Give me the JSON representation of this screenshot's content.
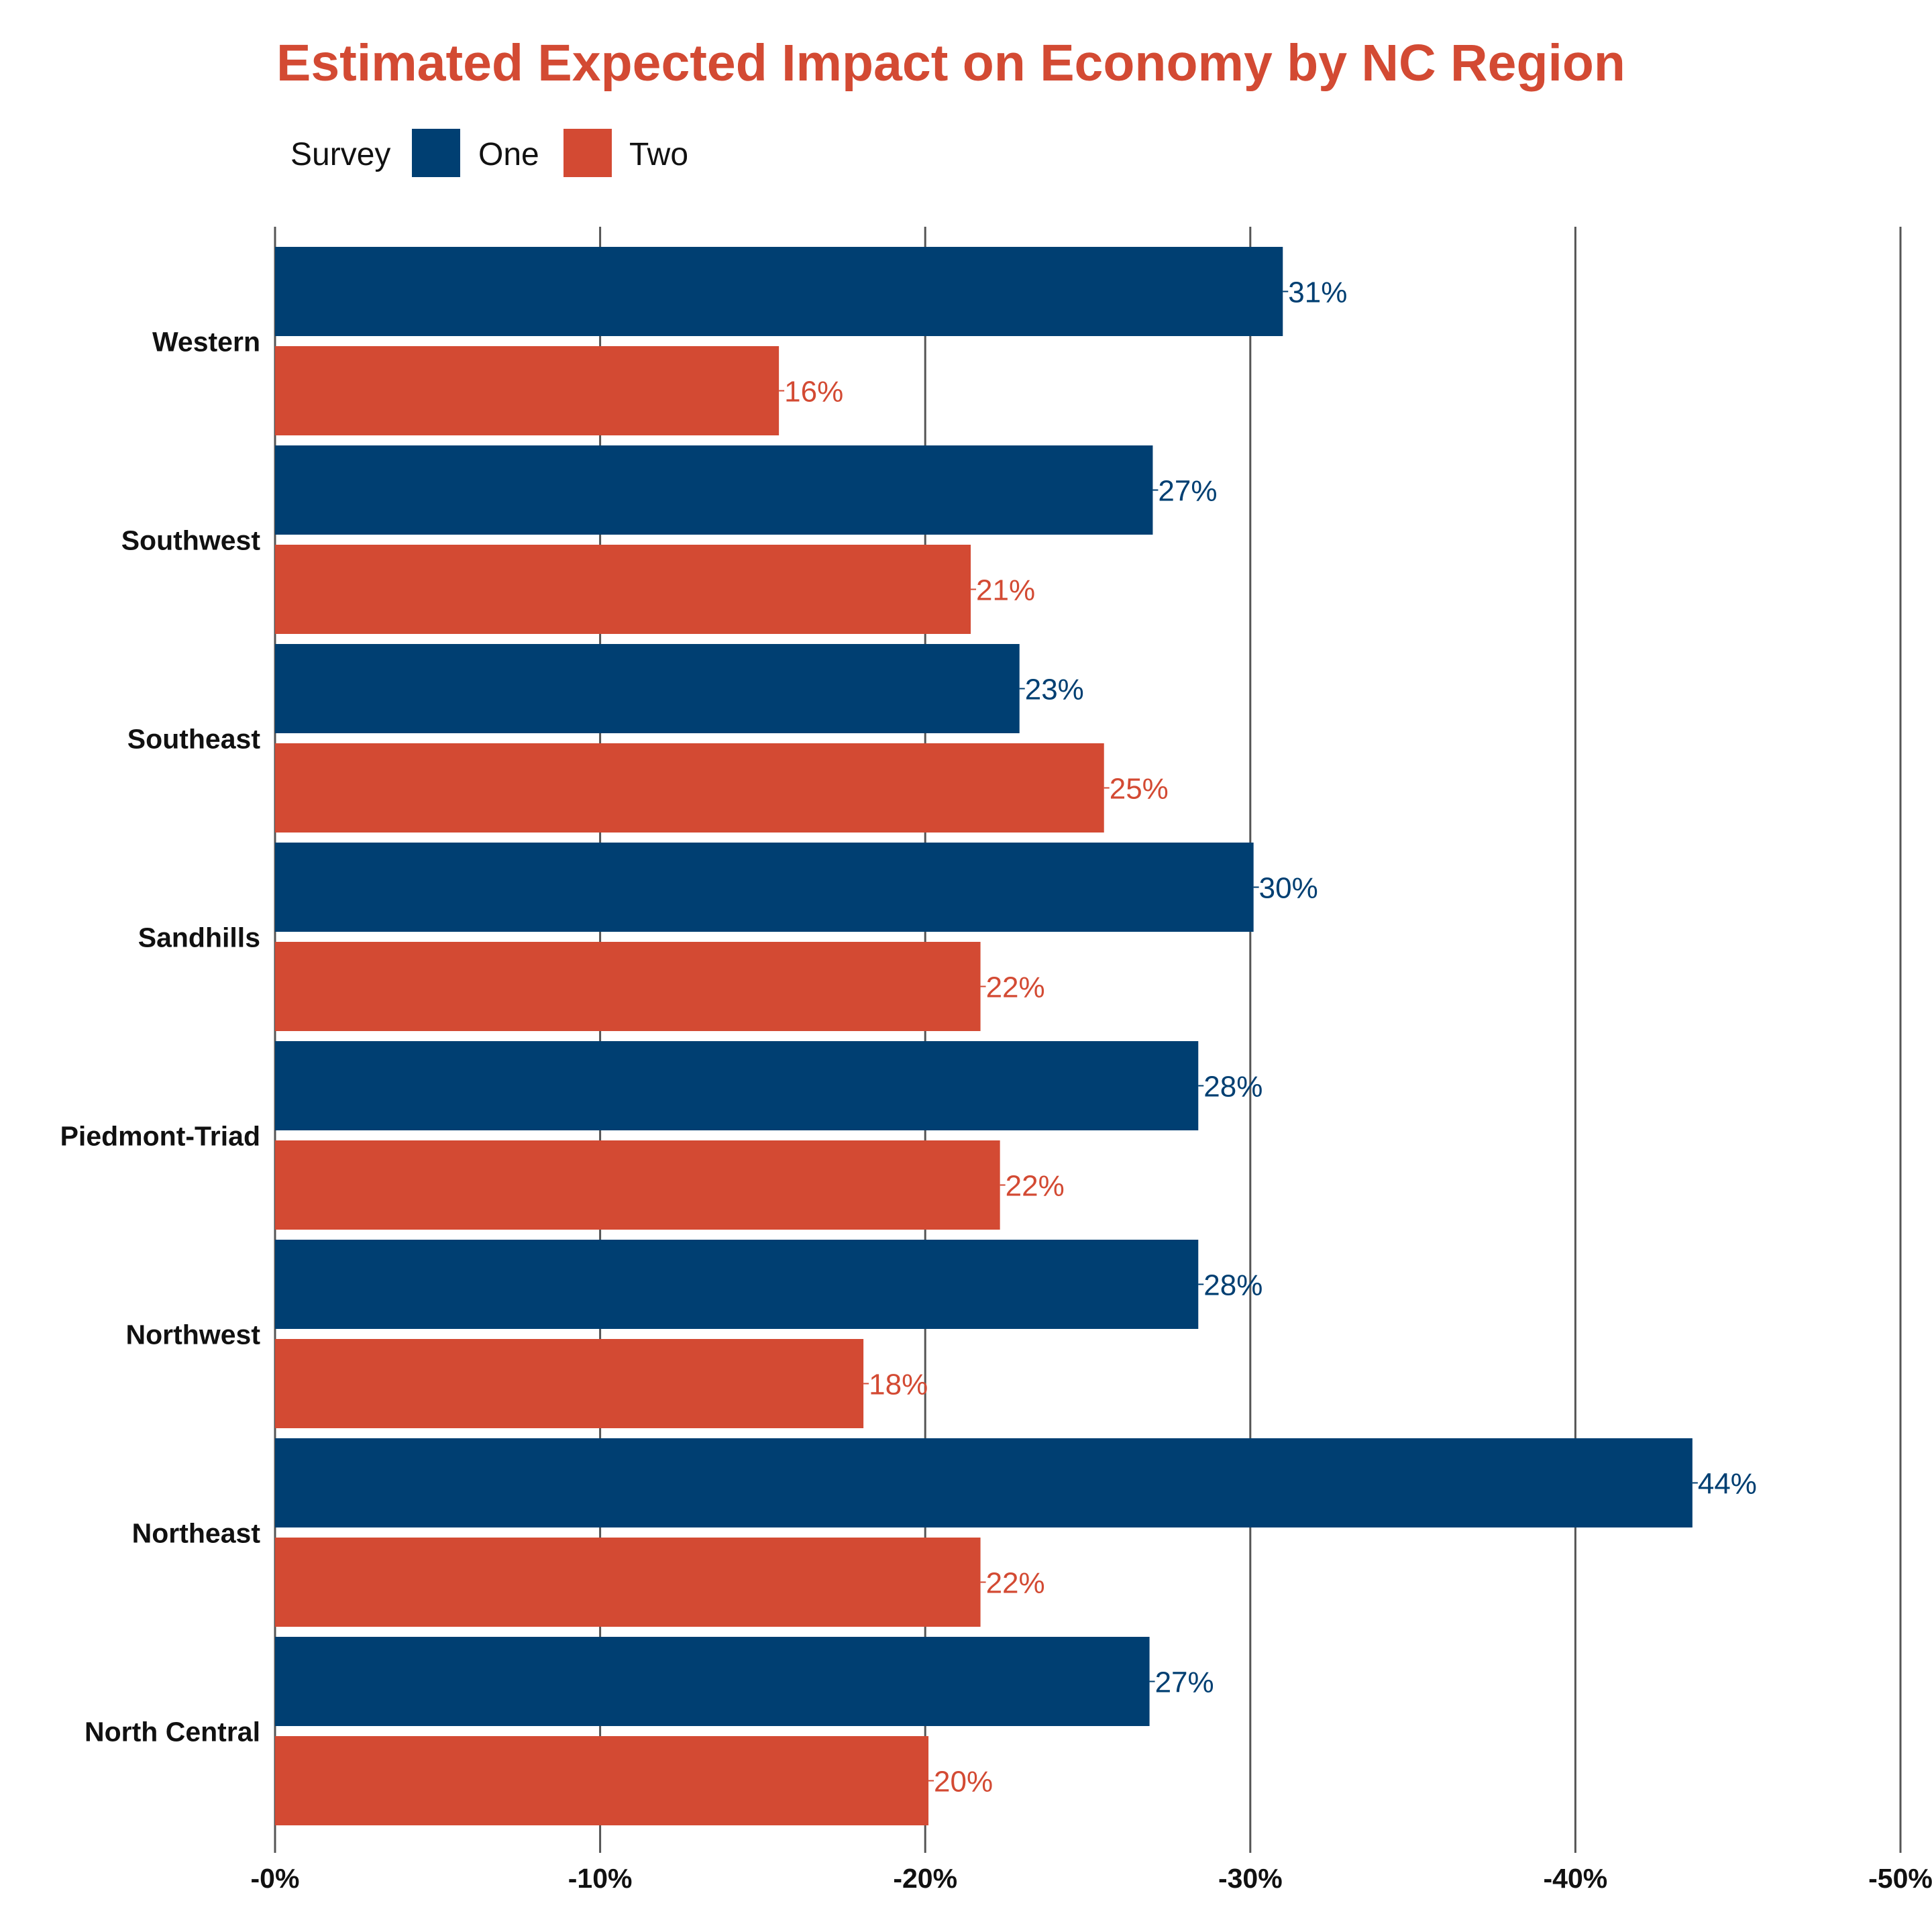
{
  "chart_data": {
    "type": "bar",
    "orientation": "horizontal",
    "title": "Estimated Expected Impact on Economy by NC Region",
    "legend": {
      "title": "Survey",
      "position": "top-left"
    },
    "categories": [
      "Western",
      "Southwest",
      "Southeast",
      "Sandhills",
      "Piedmont-Triad",
      "Northwest",
      "Northeast",
      "North Central"
    ],
    "series": [
      {
        "name": "One",
        "color": "#003f72",
        "values": [
          -31,
          -27,
          -22.9,
          -30.1,
          -28.4,
          -28.4,
          -43.6,
          -26.9
        ],
        "labels": [
          "31%",
          "27%",
          "23%",
          "30%",
          "28%",
          "28%",
          "44%",
          "27%"
        ]
      },
      {
        "name": "Two",
        "color": "#d34a33",
        "values": [
          -15.5,
          -21.4,
          -25.5,
          -21.7,
          -22.3,
          -18.1,
          -21.7,
          -20.1
        ],
        "labels": [
          "16%",
          "21%",
          "25%",
          "22%",
          "22%",
          "18%",
          "22%",
          "20%"
        ]
      }
    ],
    "xlim": [
      0,
      -50
    ],
    "xticks": [
      0,
      -10,
      -20,
      -30,
      -40,
      -50
    ],
    "xtick_labels": [
      "-0%",
      "-10%",
      "-20%",
      "-30%",
      "-40%",
      "-50%"
    ],
    "grid": "vertical major lines",
    "title_color": "#d34a33",
    "gridline_color": "#555555"
  }
}
